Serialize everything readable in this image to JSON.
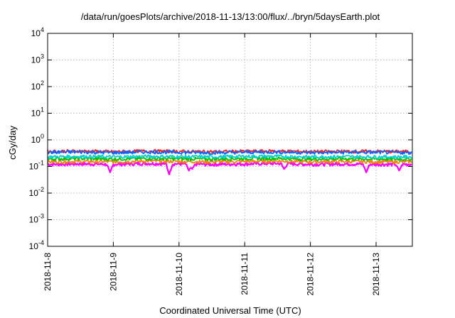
{
  "chart_data": {
    "type": "line",
    "title": "/data/run/goesPlots/archive/2018-11-13/13:00/flux/../bryn/5daysEarth.plot",
    "xlabel": "Coordinated Universal Time (UTC)",
    "ylabel": "cGy/day",
    "y_scale": "log",
    "ylim": [
      0.0001,
      10000
    ],
    "xlim": [
      "2018-11-08",
      "2018-11-13 13:00"
    ],
    "grid": true,
    "x_ticks": [
      "2018-11-8",
      "2018-11-9",
      "2018-11-10",
      "2018-11-11",
      "2018-11-12",
      "2018-11-13"
    ],
    "y_ticks": [
      {
        "base": "10",
        "exp": "-4",
        "value": 0.0001
      },
      {
        "base": "10",
        "exp": "-3",
        "value": 0.001
      },
      {
        "base": "10",
        "exp": "-2",
        "value": 0.01
      },
      {
        "base": "10",
        "exp": "-1",
        "value": 0.1
      },
      {
        "base": "10",
        "exp": "0",
        "value": 1
      },
      {
        "base": "10",
        "exp": "1",
        "value": 10
      },
      {
        "base": "10",
        "exp": "2",
        "value": 100
      },
      {
        "base": "10",
        "exp": "3",
        "value": 1000
      },
      {
        "base": "10",
        "exp": "4",
        "value": 10000
      }
    ],
    "x_days": [
      0,
      0.5,
      1,
      1.5,
      2,
      2.5,
      3,
      3.5,
      4,
      4.5,
      5,
      5.54
    ],
    "series": [
      {
        "color": "#ff00ff",
        "values": [
          0.12,
          0.125,
          0.12,
          0.13,
          0.125,
          0.12,
          0.125,
          0.13,
          0.12,
          0.125,
          0.12,
          0.12
        ],
        "dips": [
          [
            0.95,
            0.06
          ],
          [
            1.85,
            0.05
          ],
          [
            2.15,
            0.07
          ],
          [
            2.2,
            0.08
          ],
          [
            3.6,
            0.08
          ],
          [
            4.85,
            0.06
          ],
          [
            5.35,
            0.07
          ]
        ]
      },
      {
        "color": "#ff7f00",
        "values": [
          0.15,
          0.155,
          0.15,
          0.16,
          0.155,
          0.15,
          0.155,
          0.16,
          0.15,
          0.155,
          0.15,
          0.15
        ]
      },
      {
        "color": "#00c000",
        "values": [
          0.19,
          0.2,
          0.19,
          0.2,
          0.195,
          0.19,
          0.2,
          0.2,
          0.19,
          0.195,
          0.19,
          0.19
        ]
      },
      {
        "color": "#00d0d0",
        "values": [
          0.23,
          0.24,
          0.23,
          0.24,
          0.235,
          0.23,
          0.24,
          0.24,
          0.23,
          0.235,
          0.23,
          0.23
        ]
      },
      {
        "color": "#ff2020",
        "values": [
          0.37,
          0.38,
          0.36,
          0.38,
          0.37,
          0.36,
          0.37,
          0.38,
          0.36,
          0.37,
          0.37,
          0.36
        ]
      },
      {
        "color": "#1060ff",
        "values": [
          0.34,
          0.35,
          0.33,
          0.35,
          0.34,
          0.33,
          0.34,
          0.35,
          0.33,
          0.34,
          0.34,
          0.33
        ]
      }
    ]
  }
}
